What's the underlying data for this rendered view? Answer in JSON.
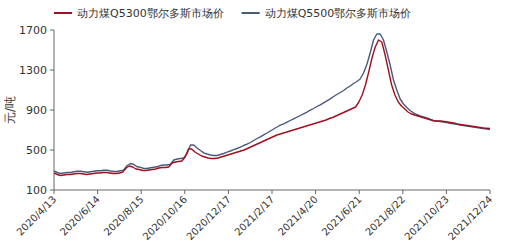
{
  "chart_data": {
    "type": "line",
    "y_label": "元/吨",
    "xlim": [
      0,
      1
    ],
    "xticks": [
      {
        "value": 0,
        "label": "2020/4/13"
      },
      {
        "value": 0.1,
        "label": "2020/6/14"
      },
      {
        "value": 0.2,
        "label": "2020/8/15"
      },
      {
        "value": 0.3,
        "label": "2020/10/16"
      },
      {
        "value": 0.4,
        "label": "2020/12/17"
      },
      {
        "value": 0.5,
        "label": "2021/2/17"
      },
      {
        "value": 0.6,
        "label": "2021/4/20"
      },
      {
        "value": 0.7,
        "label": "2021/6/21"
      },
      {
        "value": 0.8,
        "label": "2021/8/22"
      },
      {
        "value": 0.9,
        "label": "2021/10/23"
      },
      {
        "value": 1,
        "label": "2021/12/24"
      }
    ],
    "ylim": [
      100,
      1700
    ],
    "yticks": [
      100,
      500,
      900,
      1300,
      1700
    ],
    "grid": false,
    "legend": "top-left",
    "series": [
      {
        "name": "动力煤Q5300鄂尔多斯市场价",
        "color": "#a01020",
        "values": [
          270,
          255,
          245,
          250,
          255,
          255,
          260,
          265,
          265,
          260,
          255,
          260,
          265,
          270,
          270,
          275,
          275,
          270,
          265,
          265,
          270,
          280,
          320,
          340,
          330,
          310,
          305,
          295,
          295,
          300,
          305,
          310,
          320,
          325,
          325,
          330,
          370,
          380,
          385,
          390,
          430,
          510,
          510,
          480,
          460,
          440,
          430,
          420,
          415,
          415,
          420,
          430,
          440,
          450,
          460,
          470,
          480,
          490,
          500,
          515,
          530,
          545,
          560,
          575,
          590,
          605,
          620,
          635,
          650,
          660,
          670,
          680,
          690,
          700,
          710,
          720,
          730,
          740,
          750,
          760,
          770,
          780,
          790,
          800,
          815,
          825,
          840,
          855,
          870,
          885,
          900,
          915,
          930,
          980,
          1050,
          1150,
          1280,
          1420,
          1530,
          1600,
          1580,
          1450,
          1300,
          1150,
          1050,
          980,
          940,
          910,
          880,
          860,
          850,
          840,
          830,
          820,
          810,
          800,
          790,
          790,
          790,
          785,
          780,
          775,
          770,
          760,
          755,
          750,
          745,
          740,
          735,
          730,
          725,
          720,
          718,
          715
        ]
      },
      {
        "name": "动力煤Q5500鄂尔多斯市场价",
        "color": "#4a5a7a",
        "values": [
          290,
          275,
          265,
          270,
          275,
          275,
          282,
          287,
          287,
          282,
          277,
          282,
          287,
          292,
          292,
          297,
          297,
          290,
          285,
          285,
          292,
          302,
          345,
          365,
          355,
          332,
          327,
          315,
          315,
          322,
          327,
          332,
          345,
          350,
          350,
          357,
          400,
          410,
          415,
          420,
          465,
          550,
          550,
          520,
          495,
          472,
          460,
          450,
          445,
          445,
          455,
          465,
          478,
          490,
          503,
          515,
          528,
          545,
          558,
          575,
          595,
          615,
          632,
          652,
          670,
          690,
          710,
          730,
          748,
          762,
          778,
          795,
          812,
          828,
          845,
          862,
          878,
          898,
          915,
          935,
          952,
          972,
          992,
          1012,
          1035,
          1055,
          1075,
          1095,
          1120,
          1140,
          1165,
          1185,
          1210,
          1270,
          1355,
          1470,
          1600,
          1660,
          1660,
          1600,
          1480,
          1350,
          1200,
          1100,
          1010,
          960,
          925,
          895,
          872,
          855,
          842,
          830,
          820,
          808,
          796,
          790,
          785,
          780,
          775,
          768,
          762,
          757,
          750,
          745,
          740,
          735,
          730,
          725,
          720,
          715,
          710,
          705
        ]
      }
    ]
  }
}
